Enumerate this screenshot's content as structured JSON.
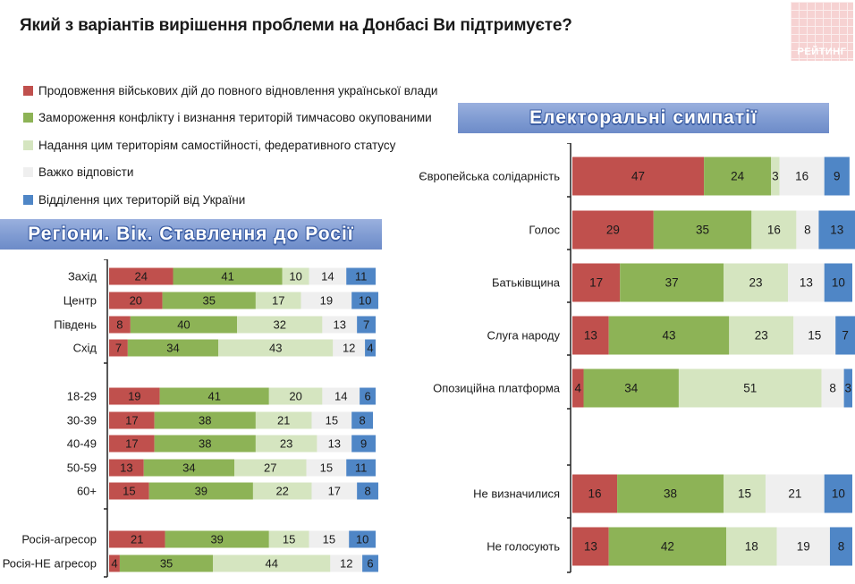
{
  "title": "Який з варіантів вирішення проблеми на Донбасі Ви підтримуєте?",
  "logo_text": "РЕЙТИНГ",
  "legend": [
    {
      "label": "Продовження військових дій до повного відновлення української влади",
      "color": "#c0504d"
    },
    {
      "label": "Замороження конфлікту і визнання територій тимчасово окупованими",
      "color": "#8db356"
    },
    {
      "label": "Надання цим територіям самостійності, федеративного статусу",
      "color": "#d5e5c0"
    },
    {
      "label": "Важко відповісти",
      "color": "#efefef"
    },
    {
      "label": "Відділення цих територій від України",
      "color": "#4f86c6"
    }
  ],
  "left_banner": "Регіони. Вік. Ставлення до Росії",
  "right_banner": "Електоральні симпатії",
  "chart_data": [
    {
      "type": "bar",
      "stacked": true,
      "orientation": "horizontal",
      "title": "Регіони. Вік. Ставлення до Росії",
      "categories": [
        "Захід",
        "Центр",
        "Південь",
        "Схід",
        "18-29",
        "30-39",
        "40-49",
        "50-59",
        "60+",
        "Росія-агресор",
        "Росія-НЕ агресор"
      ],
      "series": [
        {
          "name": "Продовження військових дій до повного відновлення української влади",
          "values": [
            24,
            20,
            8,
            7,
            19,
            17,
            17,
            13,
            15,
            21,
            4
          ]
        },
        {
          "name": "Замороження конфлікту і визнання територій тимчасово окупованими",
          "values": [
            41,
            35,
            40,
            34,
            41,
            38,
            38,
            34,
            39,
            39,
            35
          ]
        },
        {
          "name": "Надання цим територіям самостійності, федеративного статусу",
          "values": [
            10,
            17,
            32,
            43,
            20,
            21,
            23,
            27,
            22,
            15,
            44
          ]
        },
        {
          "name": "Важко відповісти",
          "values": [
            14,
            19,
            13,
            12,
            14,
            15,
            13,
            15,
            17,
            15,
            12
          ]
        },
        {
          "name": "Відділення цих територій від України",
          "values": [
            11,
            10,
            7,
            4,
            6,
            8,
            9,
            11,
            8,
            10,
            6
          ]
        }
      ]
    },
    {
      "type": "bar",
      "stacked": true,
      "orientation": "horizontal",
      "title": "Електоральні симпатії",
      "categories": [
        "Європейська солідарність",
        "Голос",
        "Батьківщина",
        "Слуга народу",
        "Опозиційна платформа",
        "Не визначилися",
        "Не голосують"
      ],
      "series": [
        {
          "name": "Продовження військових дій до повного відновлення української влади",
          "values": [
            47,
            29,
            17,
            13,
            4,
            16,
            13
          ]
        },
        {
          "name": "Замороження конфлікту і визнання територій тимчасово окупованими",
          "values": [
            24,
            35,
            37,
            43,
            34,
            38,
            42
          ]
        },
        {
          "name": "Надання цим територіям самостійності, федеративного статусу",
          "values": [
            3,
            16,
            23,
            23,
            51,
            15,
            18
          ]
        },
        {
          "name": "Важко відповісти",
          "values": [
            16,
            8,
            13,
            15,
            8,
            21,
            19
          ]
        },
        {
          "name": "Відділення цих територій від України",
          "values": [
            9,
            13,
            10,
            7,
            3,
            10,
            8
          ]
        }
      ]
    }
  ]
}
